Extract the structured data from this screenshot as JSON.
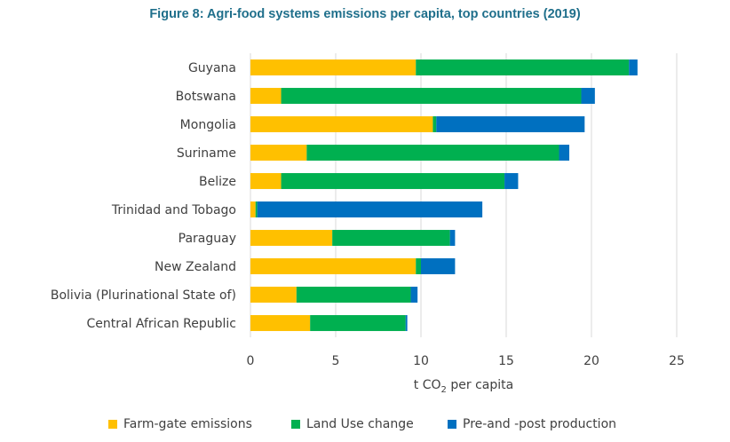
{
  "chart_data": {
    "type": "bar",
    "orientation": "horizontal",
    "stacked": true,
    "title": "Figure 8: Agri-food systems emissions per capita, top countries (2019)",
    "xlabel": "t CO2 per capita",
    "xlabel_parts": {
      "pre": "t CO",
      "sub": "2",
      "post": " per capita"
    },
    "xlim": [
      0,
      25
    ],
    "xticks": [
      0,
      5,
      10,
      15,
      20,
      25
    ],
    "grid": "vertical",
    "legend_position": "bottom",
    "categories": [
      "Guyana",
      "Botswana",
      "Mongolia",
      "Suriname",
      "Belize",
      "Trinidad and Tobago",
      "Paraguay",
      "New Zealand",
      "Bolivia (Plurinational State of)",
      "Central African Republic"
    ],
    "series": [
      {
        "name": "Farm-gate emissions",
        "color": "#FFC000",
        "values": [
          9.7,
          1.8,
          10.7,
          3.3,
          1.8,
          0.3,
          4.8,
          9.7,
          2.7,
          3.5
        ]
      },
      {
        "name": "Land Use change",
        "color": "#00B050",
        "values": [
          12.5,
          17.6,
          0.2,
          14.8,
          13.1,
          0.1,
          6.9,
          0.3,
          6.7,
          5.6
        ]
      },
      {
        "name": "Pre-and -post production",
        "color": "#0070C0",
        "values": [
          0.5,
          0.8,
          8.7,
          0.6,
          0.8,
          13.2,
          0.3,
          2.0,
          0.4,
          0.1
        ]
      }
    ]
  }
}
